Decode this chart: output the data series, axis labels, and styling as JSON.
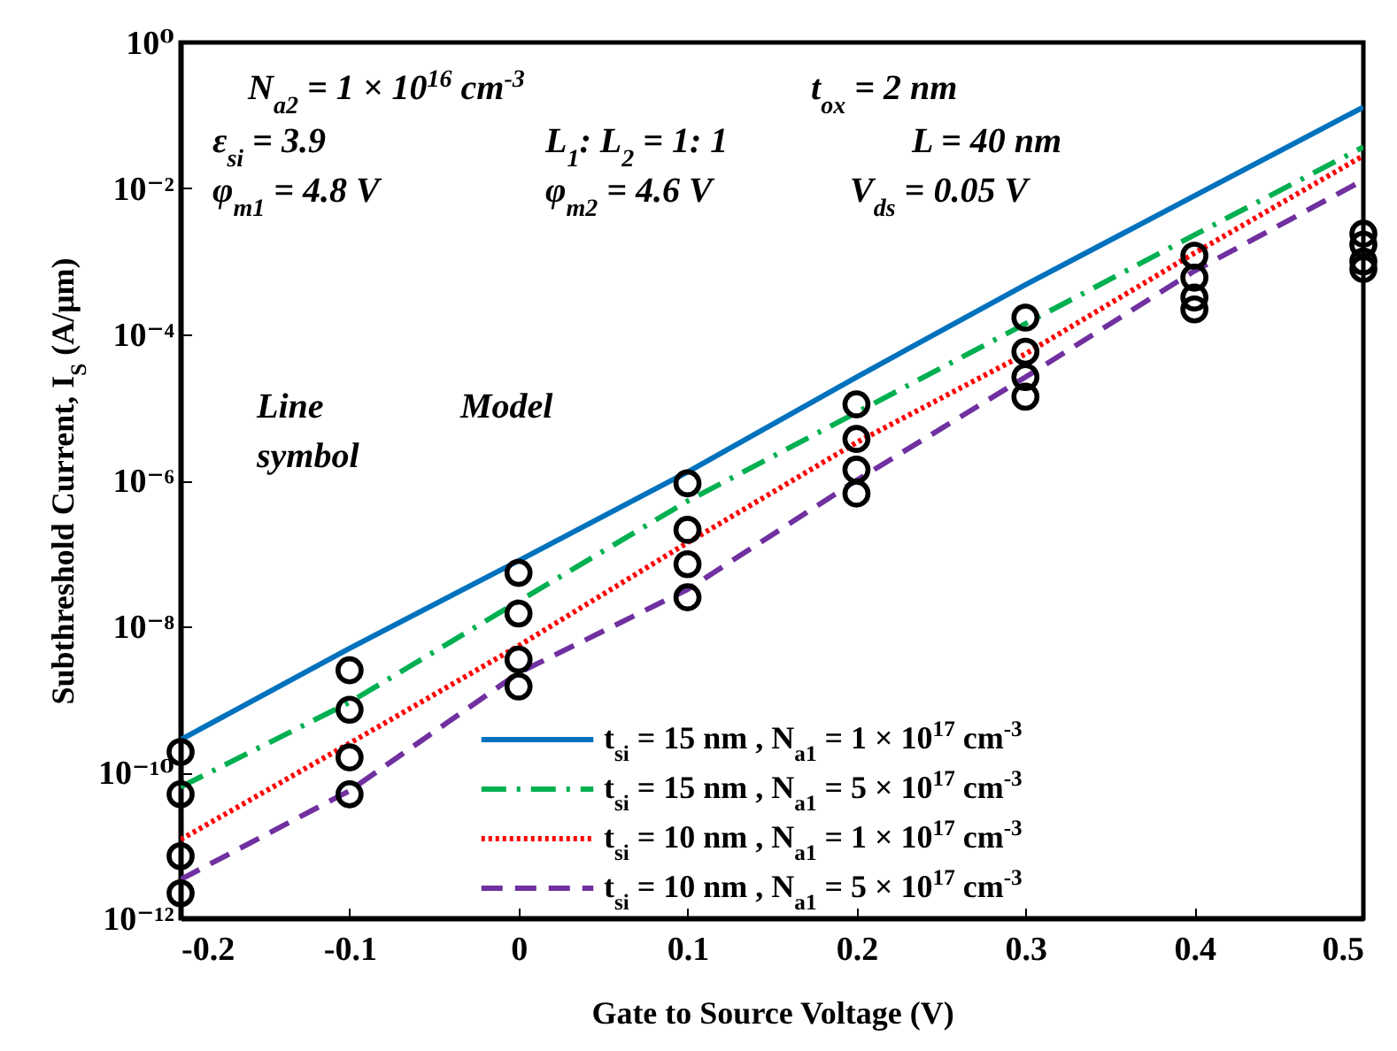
{
  "chart_data": {
    "type": "line",
    "xlabel": "Gate to Source Voltage (V)",
    "ylabel": "Subthreshold Current, I$_{S}$ (A/μm)",
    "xlim": [
      -0.2,
      0.5
    ],
    "xticks": [
      -0.2,
      -0.1,
      0,
      0.1,
      0.2,
      0.3,
      0.4,
      0.5
    ],
    "ylim": [
      1e-12,
      1
    ],
    "yticks": [
      {
        "value": 1e-12,
        "label": "10⁻¹²"
      },
      {
        "value": 1e-10,
        "label": "10⁻¹⁰"
      },
      {
        "value": 1e-08,
        "label": "10⁻⁸"
      },
      {
        "value": 1e-06,
        "label": "10⁻⁶"
      },
      {
        "value": 0.0001,
        "label": "10⁻⁴"
      },
      {
        "value": 0.01,
        "label": "10⁻²"
      },
      {
        "value": 1,
        "label": "10⁰"
      }
    ],
    "log": true,
    "grid": false,
    "legend": "bottom right",
    "x": [
      -0.2,
      -0.1,
      0,
      0.1,
      0.2,
      0.3,
      0.4,
      0.5
    ],
    "series": [
      {
        "name": "t$_{si}$ = 15 nm , N$_{a1}$ = 1 × 10$^{17}$ cm$^{-3}$",
        "color": "#0072bd",
        "line_style": "solid",
        "values": [
          2.8e-10,
          5e-09,
          7.9e-08,
          1.3e-06,
          2.6e-05,
          0.00048,
          0.0079,
          0.13
        ]
      },
      {
        "name": "t$_{si}$ = 15 nm , N$_{a1}$ = 5 × 10$^{17}$ cm$^{-3}$",
        "color": "#00b050",
        "line_style": "dashdot",
        "values": [
          6.3e-11,
          9.1e-10,
          2.2e-08,
          5.2e-07,
          8.5e-06,
          0.00014,
          0.0023,
          0.037
        ]
      },
      {
        "name": "t$_{si}$ = 10 nm , N$_{a1}$ = 1 × 10$^{17}$ cm$^{-3}$",
        "color": "#ff0000",
        "line_style": "dotted",
        "values": [
          1.2e-11,
          2.5e-10,
          5.4e-09,
          1.4e-07,
          3.3e-06,
          5.4e-05,
          0.0013,
          0.028
        ]
      },
      {
        "name": "t$_{si}$ = 10 nm , N$_{a1}$ = 5 × 10$^{17}$ cm$^{-3}$",
        "color": "#7030a0",
        "line_style": "dashed",
        "values": [
          3.4e-12,
          5.6e-11,
          2.3e-09,
          3.2e-08,
          1e-06,
          2.6e-05,
          0.00074,
          0.013
        ]
      },
      {
        "type": "scatter",
        "color": "#000000",
        "marker": "circle",
        "x": [
          -0.2,
          -0.2,
          -0.2,
          -0.2,
          -0.1,
          -0.1,
          -0.1,
          -0.1,
          0,
          0,
          0,
          0,
          0.1,
          0.1,
          0.1,
          0.1,
          0.2,
          0.2,
          0.2,
          0.2,
          0.3,
          0.3,
          0.3,
          0.3,
          0.4,
          0.4,
          0.4,
          0.4,
          0.5,
          0.5,
          0.5,
          0.5
        ],
        "values": [
          1.9e-10,
          5e-11,
          7.1e-12,
          2.2e-12,
          2.5e-09,
          7.2e-10,
          1.6e-10,
          5e-11,
          5.4e-08,
          1.5e-08,
          3.5e-09,
          1.5e-09,
          9.1e-07,
          2.1e-07,
          7.1e-08,
          2.5e-08,
          1.1e-05,
          3.7e-06,
          1.4e-06,
          6.6e-07,
          0.00017,
          5.8e-05,
          2.6e-05,
          1.4e-05,
          0.0012,
          0.0006,
          0.00032,
          0.00022,
          0.0024,
          0.0017,
          0.001,
          0.00079
        ]
      }
    ],
    "annotations": [
      "N$_{a2}$ = 1 × 10$^{16}$ cm$^{-3}$",
      "t$_{ox}$ = 2 nm",
      "ε$_{si}$ = 3.9",
      "L$_{1}$: L$_{2}$ = 1: 1",
      "L = 40 nm",
      "φ$_{m1}$ = 4.8 V",
      "φ$_{m2}$ = 4.6 V",
      "V$_{ds}$ = 0.05 V",
      "Line",
      "symbol",
      "Model"
    ]
  }
}
